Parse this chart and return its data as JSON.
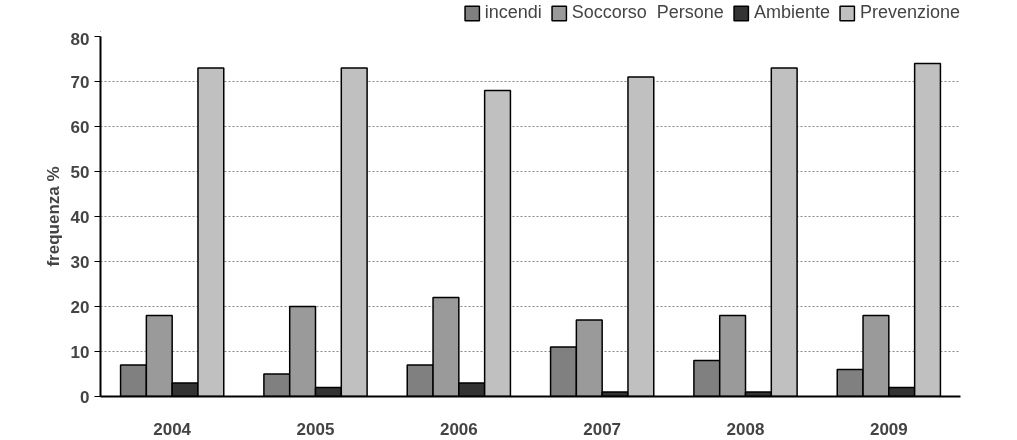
{
  "chart_data": {
    "type": "bar",
    "ylabel": "frequenza %",
    "categories": [
      "2004",
      "2005",
      "2006",
      "2007",
      "2008",
      "2009"
    ],
    "series": [
      {
        "name": "incendi",
        "color": "#808080",
        "values": [
          7,
          5,
          7,
          11,
          8,
          6
        ]
      },
      {
        "name": "Soccorso  Persone",
        "color": "#9a9a9a",
        "values": [
          18,
          20,
          22,
          17,
          18,
          18
        ]
      },
      {
        "name": "Ambiente",
        "color": "#333333",
        "values": [
          3,
          2,
          3,
          1,
          1,
          2
        ]
      },
      {
        "name": "Prevenzione",
        "color": "#c0c0c0",
        "values": [
          73,
          73,
          68,
          71,
          73,
          74
        ]
      }
    ],
    "ylim": [
      0,
      80
    ],
    "yticks": [
      0,
      10,
      20,
      30,
      40,
      50,
      60,
      70,
      80
    ],
    "grid": "y",
    "legend": "top right"
  }
}
